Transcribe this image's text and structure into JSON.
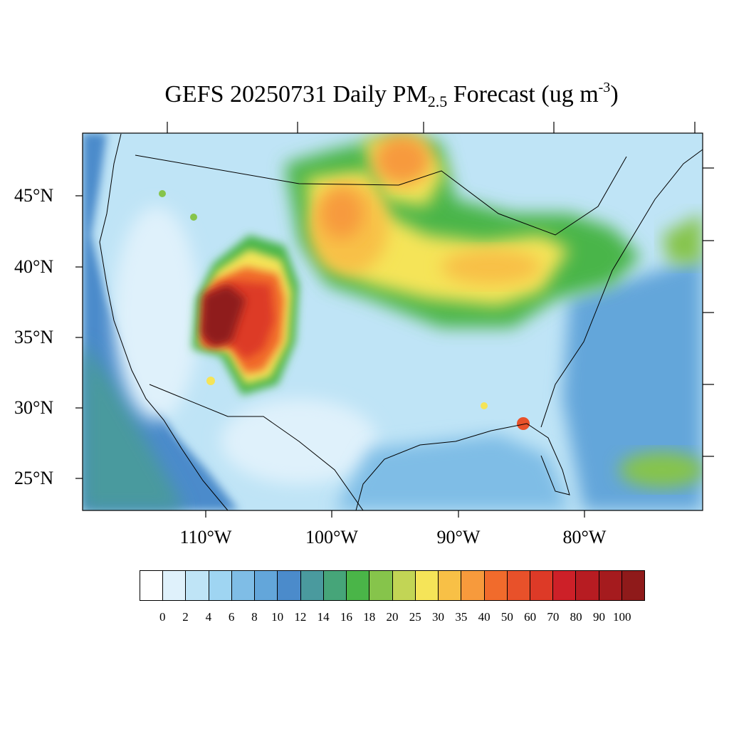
{
  "title": {
    "prefix": "GEFS 20250731 Daily PM",
    "sub": "2.5",
    "middle": " Forecast (ug m",
    "sup": "-3",
    "suffix": ")"
  },
  "lat_labels": [
    "45°N",
    "40°N",
    "35°N",
    "30°N",
    "25°N"
  ],
  "lon_labels": [
    "110°W",
    "100°W",
    "90°W",
    "80°W"
  ],
  "colorbar": {
    "colors": [
      "#ffffff",
      "#dff1fb",
      "#bfe4f6",
      "#9fd5f2",
      "#7fbde6",
      "#63a6da",
      "#4b8bcb",
      "#4a9a9e",
      "#46a579",
      "#4ab548",
      "#86c44b",
      "#c2d555",
      "#f5e458",
      "#f8c046",
      "#f79a3c",
      "#f16b2c",
      "#e8512a",
      "#dd3a27",
      "#cd2028",
      "#b71c22",
      "#a51b1e",
      "#8f1a1a"
    ],
    "labels": [
      "0",
      "2",
      "4",
      "6",
      "8",
      "10",
      "12",
      "14",
      "16",
      "18",
      "20",
      "25",
      "30",
      "35",
      "40",
      "50",
      "60",
      "70",
      "80",
      "90",
      "100"
    ]
  },
  "field_colors": {
    "ocean_pacific": "#4b8bcb",
    "ocean_pacific_far": "#4a9a9e",
    "background_low": "#dff1fb",
    "background_mid": "#bfe4f6",
    "background_blue": "#9fd5f2",
    "smoke_green": "#4ab548",
    "smoke_yellow": "#f5e458",
    "smoke_orange": "#f8c046",
    "smoke_red": "#e8512a",
    "smoke_darkred": "#8f1a1a"
  }
}
